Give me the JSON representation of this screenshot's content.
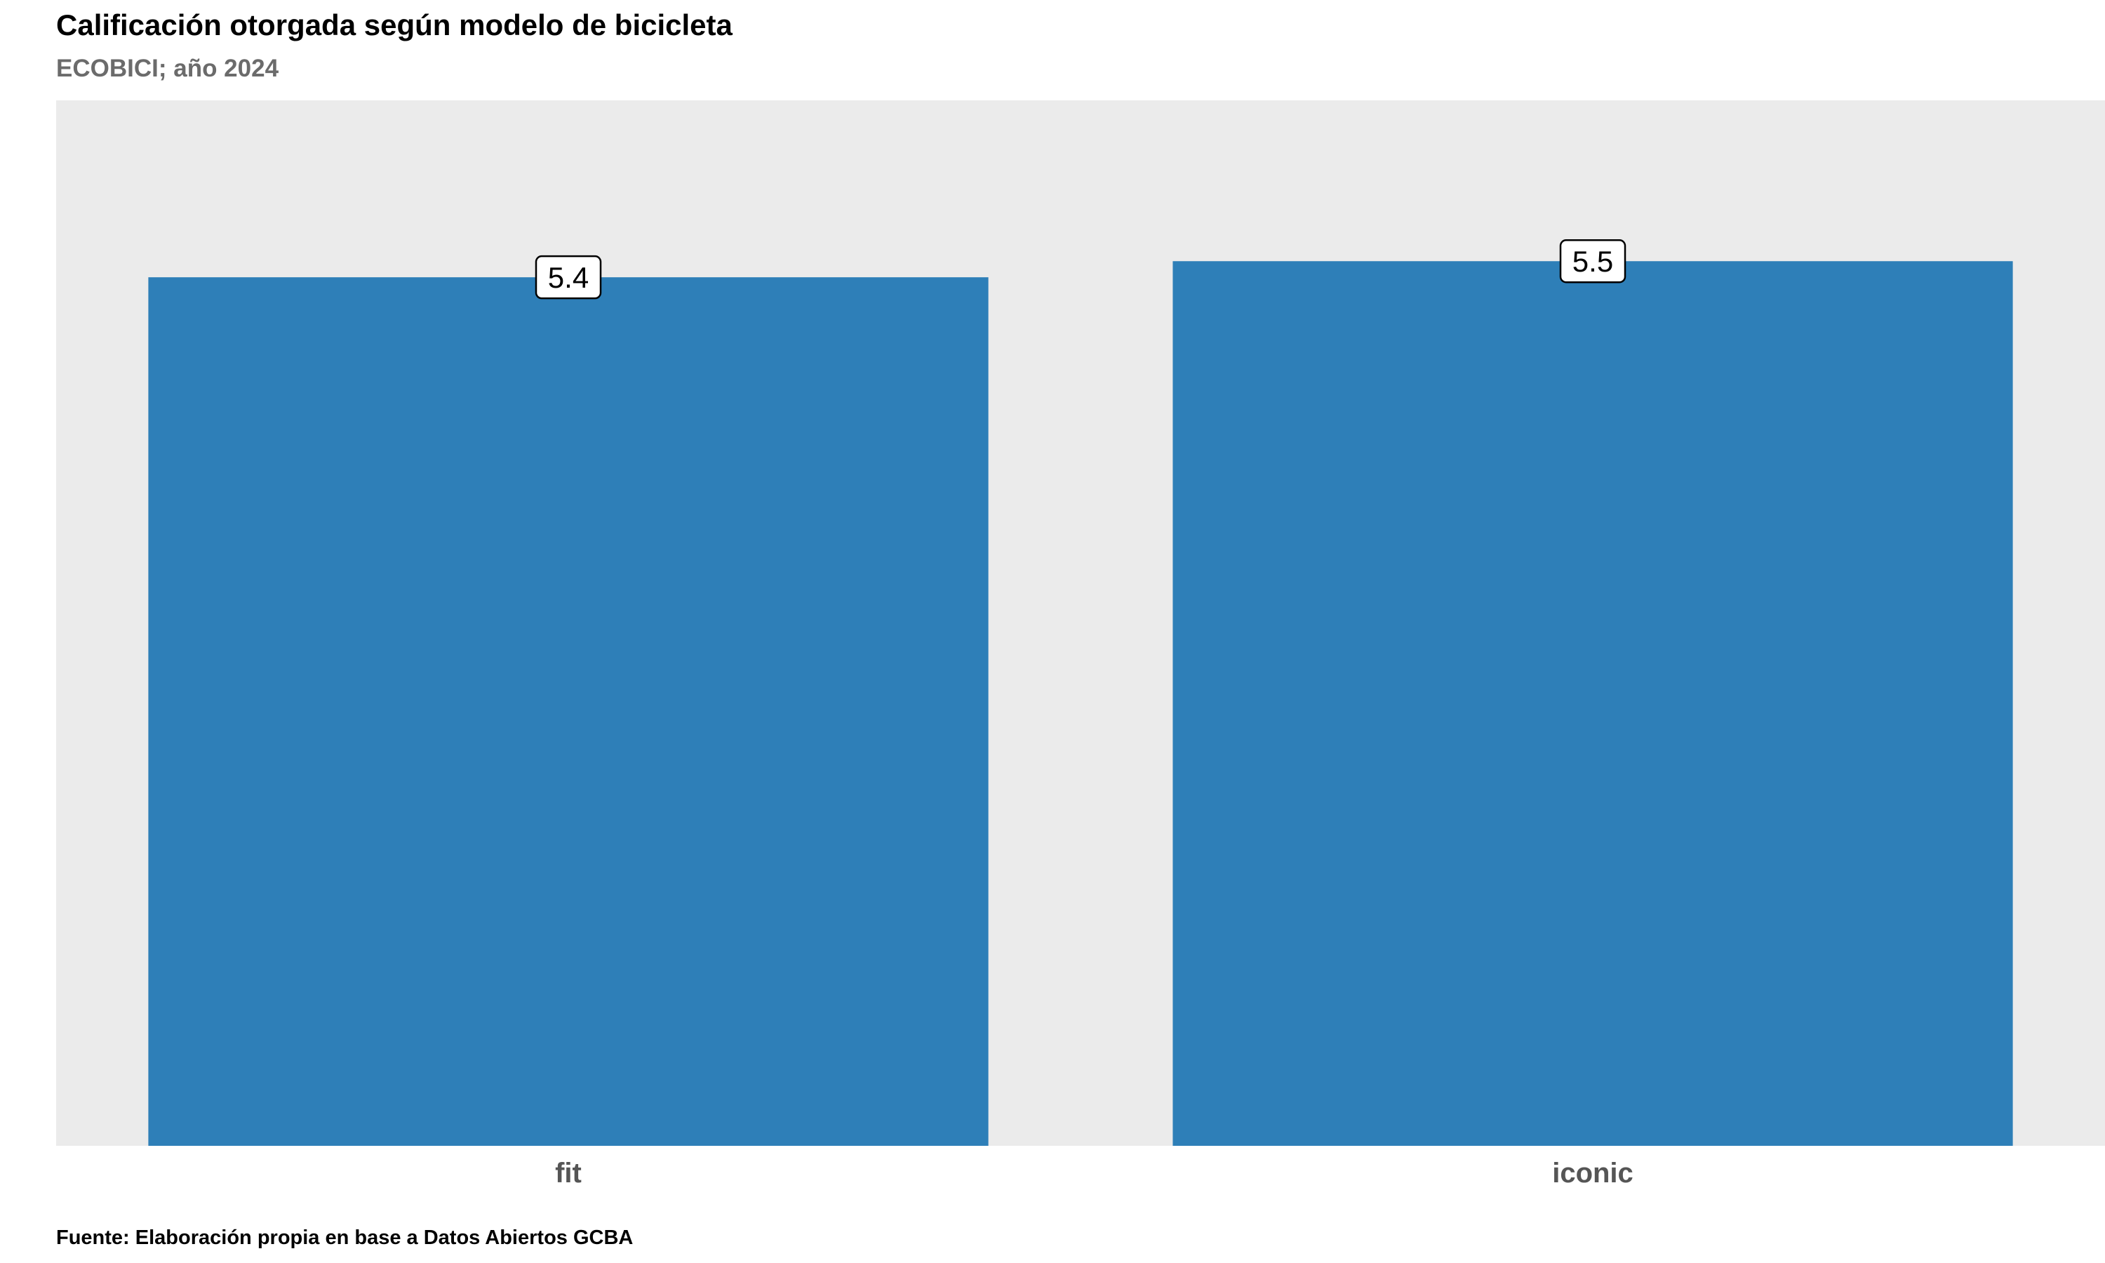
{
  "chart_data": {
    "type": "bar",
    "title": "Calificación otorgada según modelo de bicicleta",
    "subtitle": "ECOBICI; año 2024",
    "caption": "Fuente: Elaboración propia en base a Datos Abiertos GCBA",
    "categories": [
      "fit",
      "iconic"
    ],
    "values": [
      5.4,
      5.5
    ],
    "data_labels": [
      "5.4",
      "5.5"
    ],
    "xlabel": "",
    "ylabel": "",
    "ylim": [
      0,
      6.5
    ],
    "grid": false,
    "legend": "none",
    "bar_color": "#2e7fb8",
    "panel_background": "#ebebeb"
  }
}
